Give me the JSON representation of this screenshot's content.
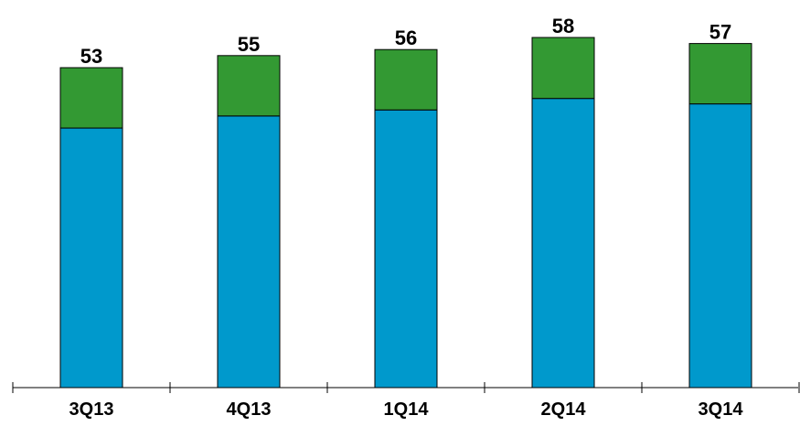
{
  "chart_data": {
    "type": "bar",
    "stacked": true,
    "categories": [
      "3Q13",
      "4Q13",
      "1Q14",
      "2Q14",
      "3Q14"
    ],
    "totals": [
      53,
      55,
      56,
      58,
      57
    ],
    "series": [
      {
        "values": [
          43.0,
          45.0,
          46.0,
          47.9,
          47.0
        ],
        "color": "#0099cc"
      },
      {
        "values": [
          10.0,
          10.0,
          10.0,
          10.1,
          10.0
        ],
        "color": "#339933"
      }
    ],
    "ylim": [
      0,
      60
    ],
    "grid": false,
    "legend": "none"
  }
}
